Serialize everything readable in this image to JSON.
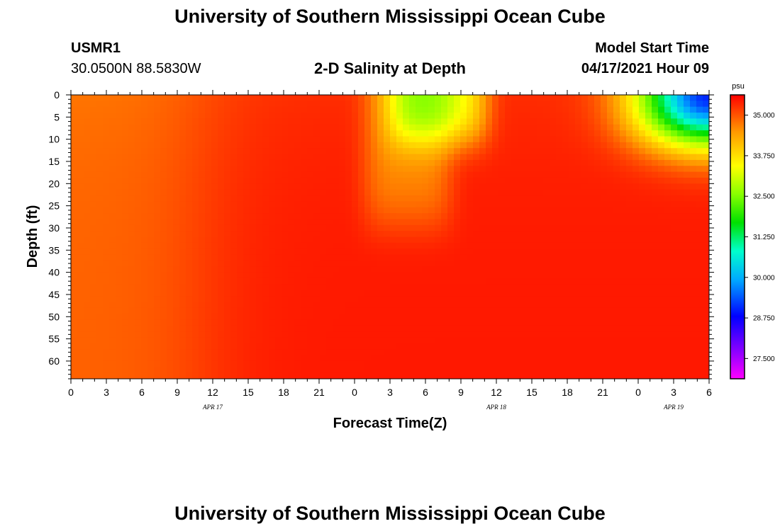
{
  "header": {
    "title_top": "University of Southern Mississippi Ocean Cube",
    "station": "USMR1",
    "coords": "30.0500N  88.5830W",
    "plot_title": "2-D Salinity at Depth",
    "model_start_label": "Model Start Time",
    "model_start_value": "04/17/2021 Hour 09",
    "title_bottom": "University of Southern Mississippi Ocean Cube"
  },
  "chart_data": {
    "type": "heatmap",
    "title": "2-D Salinity at Depth",
    "xlabel": "Forecast Time(Z)",
    "ylabel": "Depth (ft)",
    "x_tick_labels": [
      "0",
      "3",
      "6",
      "9",
      "12",
      "15",
      "18",
      "21",
      "0",
      "3",
      "6",
      "9",
      "12",
      "15",
      "18",
      "21",
      "0",
      "3",
      "6"
    ],
    "x_hours": [
      0,
      3,
      6,
      9,
      12,
      15,
      18,
      21,
      24,
      27,
      30,
      33,
      36,
      39,
      42,
      45,
      48,
      51,
      54
    ],
    "x_range_hours": [
      0,
      54
    ],
    "date_labels": [
      {
        "text": "APR  17",
        "hour": 12
      },
      {
        "text": "APR  18",
        "hour": 36
      },
      {
        "text": "APR  19",
        "hour": 51
      }
    ],
    "y_tick_labels": [
      "0",
      "5",
      "10",
      "15",
      "20",
      "25",
      "30",
      "35",
      "40",
      "45",
      "50",
      "55",
      "60"
    ],
    "y_values": [
      0,
      5,
      10,
      15,
      20,
      25,
      30,
      35,
      40,
      45,
      50,
      55,
      60
    ],
    "ylim": [
      0,
      64
    ],
    "colorbar": {
      "unit": "psu",
      "range": [
        26.875,
        35.625
      ],
      "tick_values": [
        35.0,
        33.75,
        32.5,
        31.25,
        30.0,
        28.75,
        27.5
      ],
      "tick_labels": [
        "35.000",
        "33.750",
        "32.500",
        "31.250",
        "30.000",
        "28.750",
        "27.500"
      ]
    },
    "field_description_psu": {
      "background_range": [
        34.7,
        35.5
      ],
      "surface_freshening_1": {
        "time_hours": [
          27,
          35
        ],
        "depth_ft": [
          0,
          12
        ],
        "min": 32.9
      },
      "intrusion": {
        "time_hours": [
          25,
          32
        ],
        "depth_ft": [
          12,
          30
        ],
        "value": 34.5
      },
      "surface_freshening_2": {
        "time_hours": [
          48,
          54
        ],
        "depth_ft": [
          0,
          12
        ],
        "min": 28.9
      }
    }
  }
}
